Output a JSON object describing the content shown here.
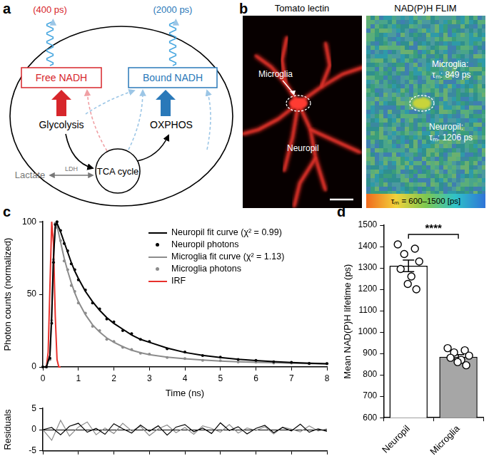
{
  "figure": {
    "a": {
      "panel_label": "a",
      "free_lifetime": "(400 ps)",
      "bound_lifetime": "(2000 ps)",
      "free": "Free NADH",
      "bound": "Bound NADH",
      "glycolysis": "Glycolysis",
      "oxphos": "OXPHOS",
      "lactate": "Lactate",
      "ldh": "LDH",
      "tca": "TCA cycle"
    },
    "b": {
      "panel_label": "b",
      "left": {
        "title": "Tomato lectin",
        "microglia": "Microglia",
        "neuropil": "Neuropil"
      },
      "right": {
        "title": "NAD(P)H FLIM",
        "microglia": [
          "Microglia:",
          "τₘ: 849 ps"
        ],
        "neuropil": [
          "Neuropil:",
          "τₘ: 1206 ps"
        ],
        "colorbar": "τₘ = 600–1500 [ps]"
      }
    }
  },
  "chart_data": [
    {
      "panel_label": "c",
      "type": "scatter",
      "x_label": "Time (ns)",
      "y_label": "Photon counts (normalized)",
      "xlim": [
        0,
        8
      ],
      "xticks": [
        0,
        1,
        2,
        3,
        4,
        5,
        6,
        7,
        8
      ],
      "ylim": [
        0,
        100
      ],
      "yticks": [
        0,
        50,
        100
      ],
      "grid": false,
      "legend": "top-right",
      "series": [
        {
          "name": "Neuropil fit curve (χ² = 0.99)",
          "type": "line",
          "color": "#000000",
          "x": [
            0,
            0.1,
            0.2,
            0.25,
            0.3,
            0.35,
            0.4,
            0.5,
            0.6,
            0.7,
            0.8,
            0.9,
            1.0,
            1.2,
            1.4,
            1.6,
            1.8,
            2.0,
            2.25,
            2.5,
            2.75,
            3.0,
            3.5,
            4.0,
            4.5,
            5.0,
            5.5,
            6.0,
            6.5,
            7.0,
            7.5,
            8.0
          ],
          "values": [
            0,
            0,
            8,
            35,
            75,
            97,
            99,
            93,
            86,
            79,
            72,
            66,
            61,
            52,
            45,
            39,
            34,
            30,
            26,
            22,
            19,
            17,
            13,
            10,
            8,
            6.5,
            5.3,
            4.4,
            3.7,
            3.1,
            2.6,
            2.2
          ]
        },
        {
          "name": "Neuropil photons",
          "type": "scatter",
          "marker": "circle",
          "color": "#000000",
          "x": [
            0,
            0.1,
            0.2,
            0.25,
            0.3,
            0.35,
            0.4,
            0.5,
            0.6,
            0.7,
            0.8,
            0.9,
            1.0,
            1.2,
            1.4,
            1.6,
            1.8,
            2.0,
            2.25,
            2.5,
            2.75,
            3.0,
            3.5,
            4.0,
            4.5,
            5.0,
            5.5,
            6.0,
            6.5,
            7.0,
            7.5,
            8.0
          ],
          "values": [
            0,
            0,
            6,
            30,
            72,
            98,
            100,
            94,
            85,
            80,
            71,
            67,
            60,
            53,
            44,
            40,
            33,
            31,
            25,
            23,
            19,
            17.5,
            12.5,
            10.3,
            7.8,
            6.7,
            5.1,
            4.6,
            3.5,
            3.2,
            2.5,
            2.3
          ]
        },
        {
          "name": "Microglia fit curve (χ² = 1.13)",
          "type": "line",
          "color": "#8c8c8c",
          "x": [
            0,
            0.1,
            0.2,
            0.25,
            0.3,
            0.35,
            0.4,
            0.5,
            0.6,
            0.7,
            0.8,
            0.9,
            1.0,
            1.2,
            1.4,
            1.6,
            1.8,
            2.0,
            2.25,
            2.5,
            2.75,
            3.0,
            3.5,
            4.0,
            4.5,
            5.0,
            5.5,
            6.0,
            6.5,
            7.0,
            7.5,
            8.0
          ],
          "values": [
            0,
            0,
            8,
            35,
            75,
            96,
            97,
            86,
            75,
            66,
            58,
            51,
            45,
            36,
            29,
            24,
            20,
            17,
            14,
            11.5,
            9.8,
            8.5,
            6.8,
            5.6,
            4.8,
            4.1,
            3.6,
            3.2,
            2.9,
            2.6,
            2.3,
            2.1
          ]
        },
        {
          "name": "Microglia photons",
          "type": "scatter",
          "marker": "circle",
          "color": "#8c8c8c",
          "x": [
            0,
            0.1,
            0.2,
            0.25,
            0.3,
            0.35,
            0.4,
            0.5,
            0.6,
            0.7,
            0.8,
            0.9,
            1.0,
            1.2,
            1.4,
            1.6,
            1.8,
            2.0,
            2.25,
            2.5,
            2.75,
            3.0,
            3.5,
            4.0,
            4.5,
            5.0,
            5.5,
            6.0,
            6.5,
            7.0,
            7.5,
            8.0
          ],
          "values": [
            0,
            0,
            5,
            32,
            74,
            99,
            96,
            87,
            73,
            67,
            56,
            52,
            44,
            37,
            28,
            25,
            19,
            17.5,
            13.5,
            12,
            9.5,
            8.8,
            6.5,
            5.8,
            4.6,
            4.3,
            3.4,
            3.3,
            2.7,
            2.7,
            2.2,
            2.2
          ]
        },
        {
          "name": "IRF",
          "type": "line",
          "color": "#e8312c",
          "x": [
            0,
            0.1,
            0.15,
            0.2,
            0.25,
            0.3,
            0.35,
            0.4,
            0.45,
            0.5
          ],
          "values": [
            0,
            0,
            10,
            55,
            100,
            85,
            35,
            5,
            0,
            0
          ]
        }
      ]
    },
    {
      "type": "line",
      "y_label": "Residuals",
      "xlim": [
        0,
        8
      ],
      "xticks": [
        0,
        1,
        2,
        3,
        4,
        5,
        6,
        7,
        8
      ],
      "ylim": [
        -5,
        5
      ],
      "yticks": [
        -5,
        0,
        5
      ],
      "tick_labels": "y",
      "grid": false,
      "x": [
        0,
        0.25,
        0.5,
        0.75,
        1,
        1.25,
        1.5,
        1.75,
        2,
        2.25,
        2.5,
        2.75,
        3,
        3.25,
        3.5,
        3.75,
        4,
        4.25,
        4.5,
        4.75,
        5,
        5.25,
        5.5,
        5.75,
        6,
        6.25,
        6.5,
        6.75,
        7,
        7.25,
        7.5,
        7.75,
        8
      ],
      "series": [
        {
          "color": "#000000",
          "values": [
            0,
            0.5,
            -1.2,
            0.8,
            1.5,
            -0.6,
            0.3,
            -1.1,
            1.4,
            0.2,
            -0.8,
            1.1,
            -0.4,
            0.9,
            -1.3,
            0.6,
            1.2,
            -0.5,
            0.4,
            -0.9,
            1.6,
            -0.2,
            0.7,
            -1.0,
            0.3,
            1.0,
            -0.7,
            0.5,
            -0.3,
            1.3,
            -0.6,
            0.2,
            -0.4
          ]
        },
        {
          "color": "#8c8c8c",
          "values": [
            0,
            -2.5,
            2.2,
            -1.5,
            0.6,
            1.8,
            -1.2,
            0.4,
            -0.9,
            1.5,
            -0.3,
            0.8,
            -1.4,
            0.2,
            1.1,
            -0.7,
            0.5,
            -1.1,
            0.9,
            0.3,
            -0.6,
            1.2,
            -0.8,
            0.4,
            -0.2,
            0.7,
            -1.0,
            0.6,
            0.1,
            -0.5,
            0.9,
            -0.3,
            0.2
          ]
        }
      ]
    },
    {
      "panel_label": "d",
      "type": "bar",
      "categories": [
        "Neuropil",
        "Microglia"
      ],
      "values": [
        1310,
        885
      ],
      "colors": [
        "#ffffff",
        "#a6a6a6"
      ],
      "errors": [
        27,
        10
      ],
      "points": [
        [
          1410,
          1390,
          1365,
          1330,
          1295,
          1260,
          1225,
          1200
        ],
        [
          925,
          915,
          905,
          890,
          880,
          870,
          860,
          845
        ]
      ],
      "y_label": "Mean NAD(P)H lifetime (ps)",
      "ylim": [
        600,
        1500
      ],
      "yticks": [
        600,
        700,
        800,
        900,
        1000,
        1100,
        1200,
        1300,
        1400,
        1500
      ],
      "annotation": "****",
      "grid": false
    }
  ]
}
